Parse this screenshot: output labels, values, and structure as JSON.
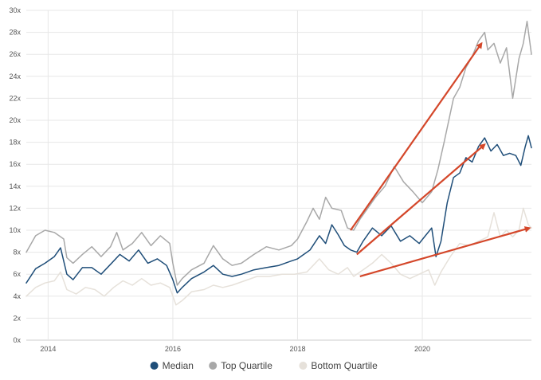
{
  "chart_data": {
    "type": "line",
    "title": "",
    "xlabel": "",
    "ylabel": "",
    "x_range": [
      2013.65,
      2021.75
    ],
    "xticks": [
      {
        "x": 2014,
        "label": "2014"
      },
      {
        "x": 2016,
        "label": "2016"
      },
      {
        "x": 2018,
        "label": "2018"
      },
      {
        "x": 2020,
        "label": "2020"
      }
    ],
    "ylim": [
      0,
      30
    ],
    "yticks": [
      {
        "y": 0,
        "label": "0x"
      },
      {
        "y": 2,
        "label": "2x"
      },
      {
        "y": 4,
        "label": "4x"
      },
      {
        "y": 6,
        "label": "6x"
      },
      {
        "y": 8,
        "label": "8x"
      },
      {
        "y": 10,
        "label": "10x"
      },
      {
        "y": 12,
        "label": "12x"
      },
      {
        "y": 14,
        "label": "14x"
      },
      {
        "y": 16,
        "label": "16x"
      },
      {
        "y": 18,
        "label": "18x"
      },
      {
        "y": 20,
        "label": "20x"
      },
      {
        "y": 22,
        "label": "22x"
      },
      {
        "y": 24,
        "label": "24x"
      },
      {
        "y": 26,
        "label": "26x"
      },
      {
        "y": 28,
        "label": "28x"
      },
      {
        "y": 30,
        "label": "30x"
      }
    ],
    "grid": "horizontal and vertical",
    "legend_position": "bottom",
    "series": [
      {
        "name": "Top Quartile",
        "color": "#a8a8a8",
        "points": [
          [
            2013.65,
            8.0
          ],
          [
            2013.8,
            9.5
          ],
          [
            2013.95,
            10.0
          ],
          [
            2014.1,
            9.8
          ],
          [
            2014.25,
            9.2
          ],
          [
            2014.3,
            7.5
          ],
          [
            2014.4,
            7.0
          ],
          [
            2014.55,
            7.8
          ],
          [
            2014.7,
            8.5
          ],
          [
            2014.85,
            7.6
          ],
          [
            2015.0,
            8.5
          ],
          [
            2015.1,
            9.8
          ],
          [
            2015.2,
            8.2
          ],
          [
            2015.35,
            8.8
          ],
          [
            2015.5,
            9.8
          ],
          [
            2015.65,
            8.6
          ],
          [
            2015.8,
            9.5
          ],
          [
            2015.95,
            8.8
          ],
          [
            2016.0,
            7.0
          ],
          [
            2016.07,
            5.0
          ],
          [
            2016.15,
            5.6
          ],
          [
            2016.3,
            6.4
          ],
          [
            2016.5,
            7.0
          ],
          [
            2016.65,
            8.6
          ],
          [
            2016.8,
            7.4
          ],
          [
            2016.95,
            6.8
          ],
          [
            2017.1,
            7.0
          ],
          [
            2017.3,
            7.8
          ],
          [
            2017.5,
            8.5
          ],
          [
            2017.7,
            8.2
          ],
          [
            2017.9,
            8.6
          ],
          [
            2018.0,
            9.2
          ],
          [
            2018.15,
            10.8
          ],
          [
            2018.25,
            12.0
          ],
          [
            2018.35,
            11.0
          ],
          [
            2018.45,
            13.0
          ],
          [
            2018.55,
            12.0
          ],
          [
            2018.7,
            11.8
          ],
          [
            2018.8,
            10.2
          ],
          [
            2018.9,
            10.0
          ],
          [
            2019.0,
            11.0
          ],
          [
            2019.1,
            11.8
          ],
          [
            2019.25,
            13.0
          ],
          [
            2019.4,
            14.0
          ],
          [
            2019.55,
            15.8
          ],
          [
            2019.7,
            14.4
          ],
          [
            2019.85,
            13.5
          ],
          [
            2020.0,
            12.5
          ],
          [
            2020.15,
            13.5
          ],
          [
            2020.25,
            15.5
          ],
          [
            2020.35,
            18.0
          ],
          [
            2020.5,
            22.0
          ],
          [
            2020.6,
            23.0
          ],
          [
            2020.7,
            24.8
          ],
          [
            2020.8,
            25.8
          ],
          [
            2020.9,
            27.2
          ],
          [
            2021.0,
            28.0
          ],
          [
            2021.05,
            26.4
          ],
          [
            2021.15,
            27.0
          ],
          [
            2021.25,
            25.2
          ],
          [
            2021.35,
            26.6
          ],
          [
            2021.45,
            22.0
          ],
          [
            2021.55,
            25.6
          ],
          [
            2021.62,
            27.0
          ],
          [
            2021.68,
            29.0
          ],
          [
            2021.75,
            26.0
          ]
        ]
      },
      {
        "name": "Median",
        "color": "#1f4e79",
        "points": [
          [
            2013.65,
            5.2
          ],
          [
            2013.8,
            6.5
          ],
          [
            2013.95,
            7.0
          ],
          [
            2014.1,
            7.6
          ],
          [
            2014.2,
            8.4
          ],
          [
            2014.3,
            6.0
          ],
          [
            2014.4,
            5.5
          ],
          [
            2014.55,
            6.6
          ],
          [
            2014.7,
            6.6
          ],
          [
            2014.85,
            6.0
          ],
          [
            2015.0,
            6.9
          ],
          [
            2015.15,
            7.8
          ],
          [
            2015.3,
            7.2
          ],
          [
            2015.45,
            8.2
          ],
          [
            2015.6,
            7.0
          ],
          [
            2015.75,
            7.4
          ],
          [
            2015.9,
            6.8
          ],
          [
            2016.0,
            5.5
          ],
          [
            2016.07,
            4.3
          ],
          [
            2016.15,
            4.8
          ],
          [
            2016.3,
            5.6
          ],
          [
            2016.5,
            6.2
          ],
          [
            2016.65,
            6.8
          ],
          [
            2016.8,
            6.0
          ],
          [
            2016.95,
            5.8
          ],
          [
            2017.1,
            6.0
          ],
          [
            2017.3,
            6.4
          ],
          [
            2017.5,
            6.6
          ],
          [
            2017.7,
            6.8
          ],
          [
            2017.9,
            7.2
          ],
          [
            2018.0,
            7.4
          ],
          [
            2018.2,
            8.2
          ],
          [
            2018.35,
            9.5
          ],
          [
            2018.45,
            8.8
          ],
          [
            2018.55,
            10.5
          ],
          [
            2018.65,
            9.6
          ],
          [
            2018.75,
            8.6
          ],
          [
            2018.85,
            8.2
          ],
          [
            2018.95,
            8.0
          ],
          [
            2019.05,
            9.0
          ],
          [
            2019.2,
            10.2
          ],
          [
            2019.35,
            9.5
          ],
          [
            2019.5,
            10.4
          ],
          [
            2019.65,
            9.0
          ],
          [
            2019.8,
            9.5
          ],
          [
            2019.95,
            8.8
          ],
          [
            2020.05,
            9.5
          ],
          [
            2020.15,
            10.2
          ],
          [
            2020.22,
            7.6
          ],
          [
            2020.3,
            9.0
          ],
          [
            2020.4,
            12.5
          ],
          [
            2020.5,
            14.8
          ],
          [
            2020.6,
            15.2
          ],
          [
            2020.7,
            16.6
          ],
          [
            2020.8,
            16.2
          ],
          [
            2020.9,
            17.6
          ],
          [
            2021.0,
            18.4
          ],
          [
            2021.1,
            17.2
          ],
          [
            2021.2,
            17.8
          ],
          [
            2021.3,
            16.8
          ],
          [
            2021.4,
            17.0
          ],
          [
            2021.5,
            16.8
          ],
          [
            2021.58,
            15.9
          ],
          [
            2021.65,
            17.6
          ],
          [
            2021.7,
            18.6
          ],
          [
            2021.75,
            17.5
          ]
        ]
      },
      {
        "name": "Bottom Quartile",
        "color": "#e6e1da",
        "points": [
          [
            2013.65,
            4.0
          ],
          [
            2013.8,
            4.8
          ],
          [
            2013.95,
            5.2
          ],
          [
            2014.1,
            5.4
          ],
          [
            2014.2,
            6.2
          ],
          [
            2014.3,
            4.6
          ],
          [
            2014.45,
            4.2
          ],
          [
            2014.6,
            4.8
          ],
          [
            2014.75,
            4.6
          ],
          [
            2014.9,
            4.0
          ],
          [
            2015.05,
            4.8
          ],
          [
            2015.2,
            5.4
          ],
          [
            2015.35,
            5.0
          ],
          [
            2015.5,
            5.6
          ],
          [
            2015.65,
            5.0
          ],
          [
            2015.8,
            5.2
          ],
          [
            2015.95,
            4.8
          ],
          [
            2016.05,
            3.2
          ],
          [
            2016.15,
            3.6
          ],
          [
            2016.3,
            4.4
          ],
          [
            2016.5,
            4.6
          ],
          [
            2016.65,
            5.0
          ],
          [
            2016.8,
            4.8
          ],
          [
            2016.95,
            5.0
          ],
          [
            2017.15,
            5.4
          ],
          [
            2017.35,
            5.8
          ],
          [
            2017.55,
            5.8
          ],
          [
            2017.75,
            6.0
          ],
          [
            2017.95,
            6.0
          ],
          [
            2018.15,
            6.2
          ],
          [
            2018.35,
            7.4
          ],
          [
            2018.5,
            6.4
          ],
          [
            2018.65,
            6.0
          ],
          [
            2018.8,
            6.6
          ],
          [
            2018.9,
            5.8
          ],
          [
            2019.05,
            6.4
          ],
          [
            2019.2,
            7.0
          ],
          [
            2019.35,
            7.8
          ],
          [
            2019.5,
            7.0
          ],
          [
            2019.65,
            6.0
          ],
          [
            2019.8,
            5.6
          ],
          [
            2019.95,
            6.0
          ],
          [
            2020.1,
            6.4
          ],
          [
            2020.2,
            5.0
          ],
          [
            2020.3,
            6.2
          ],
          [
            2020.45,
            7.6
          ],
          [
            2020.6,
            8.8
          ],
          [
            2020.75,
            8.6
          ],
          [
            2020.9,
            9.0
          ],
          [
            2021.05,
            9.4
          ],
          [
            2021.15,
            11.6
          ],
          [
            2021.25,
            9.4
          ],
          [
            2021.35,
            10.0
          ],
          [
            2021.45,
            9.4
          ],
          [
            2021.55,
            10.0
          ],
          [
            2021.62,
            12.0
          ],
          [
            2021.7,
            10.5
          ],
          [
            2021.75,
            10.2
          ]
        ]
      }
    ],
    "annotations": [
      {
        "type": "arrow",
        "color": "#d4472a",
        "from": [
          2018.85,
          10.0
        ],
        "to": [
          2020.95,
          27.0
        ]
      },
      {
        "type": "arrow",
        "color": "#d4472a",
        "from": [
          2018.95,
          7.8
        ],
        "to": [
          2021.0,
          17.8
        ]
      },
      {
        "type": "arrow",
        "color": "#d4472a",
        "from": [
          2019.0,
          5.8
        ],
        "to": [
          2021.72,
          10.2
        ]
      }
    ],
    "legend": [
      {
        "name": "Median",
        "color": "#1f4e79"
      },
      {
        "name": "Top Quartile",
        "color": "#a8a8a8"
      },
      {
        "name": "Bottom Quartile",
        "color": "#e6e1da"
      }
    ]
  }
}
